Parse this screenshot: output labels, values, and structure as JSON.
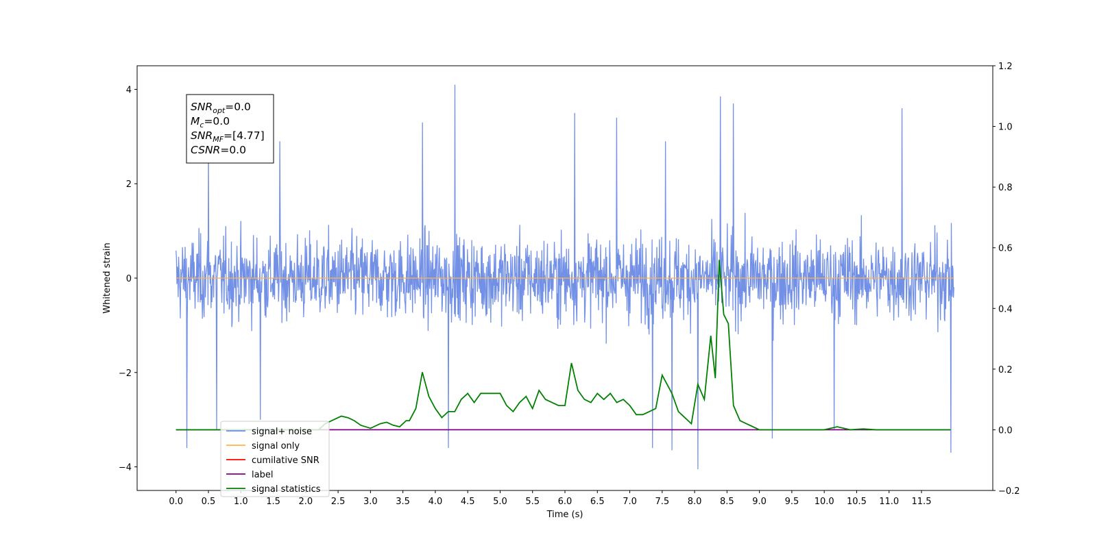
{
  "chart_data": {
    "type": "line",
    "xlabel": "Time (s)",
    "ylabel": "Whitened strain",
    "xlim": [
      -0.6,
      12.6
    ],
    "ylim": [
      -4.5,
      4.5
    ],
    "y2lim": [
      -0.2,
      1.2
    ],
    "x_ticks": [
      0.0,
      0.5,
      1.0,
      1.5,
      2.0,
      2.5,
      3.0,
      3.5,
      4.0,
      4.5,
      5.0,
      5.5,
      6.0,
      6.5,
      7.0,
      7.5,
      8.0,
      8.5,
      9.0,
      9.5,
      10.0,
      10.5,
      11.0,
      11.5
    ],
    "x_tick_labels": [
      "0.0",
      "0.5",
      "1.0",
      "1.5",
      "2.0",
      "2.5",
      "3.0",
      "3.5",
      "4.0",
      "4.5",
      "5.0",
      "5.5",
      "6.0",
      "6.5",
      "7.0",
      "7.5",
      "8.0",
      "8.5",
      "9.0",
      "9.5",
      "10.0",
      "10.5",
      "11.0",
      "11.5"
    ],
    "y_ticks": [
      -4,
      -2,
      0,
      2,
      4
    ],
    "y_tick_labels": [
      "−4",
      "−2",
      "0",
      "2",
      "4"
    ],
    "y2_ticks": [
      -0.2,
      0.0,
      0.2,
      0.4,
      0.6,
      0.8,
      1.0,
      1.2
    ],
    "y2_tick_labels": [
      "−0.2",
      "0.0",
      "0.2",
      "0.4",
      "0.6",
      "0.8",
      "1.0",
      "1.2"
    ],
    "legend_position": "lower-left",
    "grid": false,
    "annotation": {
      "lines": [
        {
          "base": "SNR",
          "sub": "opt",
          "value": "=0.0"
        },
        {
          "base": "M",
          "sub": "c",
          "value": "=0.0"
        },
        {
          "base": "SNR",
          "sub": "MF",
          "value": "=[4.77]"
        },
        {
          "base": "CSNR",
          "sub": "",
          "value": "=0.0"
        }
      ]
    },
    "series": [
      {
        "name": "signal+ noise",
        "axis": "left",
        "color": "#6b8ae6",
        "x_range": [
          0.0,
          12.0
        ],
        "envelope_typical": [
          -2.0,
          2.0
        ],
        "peaks": [
          {
            "x": 0.17,
            "y": -3.6
          },
          {
            "x": 0.5,
            "y": 2.85
          },
          {
            "x": 0.63,
            "y": -3.2
          },
          {
            "x": 1.3,
            "y": -3.0
          },
          {
            "x": 1.6,
            "y": 2.9
          },
          {
            "x": 3.8,
            "y": 3.3
          },
          {
            "x": 4.2,
            "y": -3.6
          },
          {
            "x": 4.3,
            "y": 4.1
          },
          {
            "x": 6.15,
            "y": 3.5
          },
          {
            "x": 6.8,
            "y": 3.4
          },
          {
            "x": 7.35,
            "y": -3.6
          },
          {
            "x": 7.55,
            "y": 2.9
          },
          {
            "x": 7.65,
            "y": -3.65
          },
          {
            "x": 8.05,
            "y": -4.05
          },
          {
            "x": 8.4,
            "y": 3.85
          },
          {
            "x": 8.6,
            "y": 3.7
          },
          {
            "x": 9.2,
            "y": -3.4
          },
          {
            "x": 10.15,
            "y": -3.2
          },
          {
            "x": 11.2,
            "y": 3.6
          },
          {
            "x": 11.95,
            "y": -3.7
          }
        ]
      },
      {
        "name": "signal only",
        "axis": "left",
        "color": "#ffb347",
        "x": [
          0.0,
          12.0
        ],
        "y": [
          0.0,
          0.0
        ]
      },
      {
        "name": "cumilative SNR",
        "axis": "right",
        "color": "#ff0000",
        "x": [],
        "y": []
      },
      {
        "name": "label",
        "axis": "right",
        "color": "#800080",
        "x": [
          0.0,
          11.95
        ],
        "y": [
          0.0,
          0.0
        ]
      },
      {
        "name": "signal statistics",
        "axis": "right",
        "color": "#008000",
        "x": [
          0.0,
          2.2,
          2.3,
          2.45,
          2.55,
          2.65,
          2.75,
          2.85,
          3.0,
          3.15,
          3.25,
          3.35,
          3.45,
          3.55,
          3.6,
          3.7,
          3.8,
          3.9,
          4.0,
          4.1,
          4.2,
          4.3,
          4.4,
          4.5,
          4.6,
          4.7,
          4.8,
          4.9,
          5.0,
          5.1,
          5.2,
          5.3,
          5.4,
          5.5,
          5.6,
          5.7,
          5.8,
          5.9,
          6.0,
          6.1,
          6.2,
          6.3,
          6.4,
          6.5,
          6.6,
          6.7,
          6.8,
          6.9,
          7.0,
          7.1,
          7.2,
          7.3,
          7.4,
          7.5,
          7.6,
          7.65,
          7.75,
          7.85,
          7.95,
          8.05,
          8.15,
          8.25,
          8.32,
          8.38,
          8.45,
          8.52,
          8.6,
          8.7,
          8.8,
          8.9,
          9.0,
          9.2,
          10.0,
          10.2,
          10.4,
          10.6,
          10.8,
          11.95
        ],
        "y": [
          0.0,
          0.0,
          0.02,
          0.035,
          0.045,
          0.04,
          0.03,
          0.015,
          0.005,
          0.02,
          0.025,
          0.015,
          0.01,
          0.03,
          0.03,
          0.07,
          0.19,
          0.11,
          0.07,
          0.04,
          0.06,
          0.06,
          0.1,
          0.12,
          0.09,
          0.12,
          0.12,
          0.12,
          0.12,
          0.08,
          0.06,
          0.09,
          0.11,
          0.07,
          0.13,
          0.1,
          0.09,
          0.08,
          0.08,
          0.22,
          0.13,
          0.1,
          0.09,
          0.12,
          0.1,
          0.12,
          0.09,
          0.1,
          0.08,
          0.05,
          0.05,
          0.06,
          0.07,
          0.18,
          0.14,
          0.12,
          0.06,
          0.04,
          0.02,
          0.15,
          0.1,
          0.31,
          0.17,
          0.56,
          0.38,
          0.35,
          0.08,
          0.03,
          0.02,
          0.01,
          0.0,
          0.0,
          0.0,
          0.01,
          0.0,
          0.003,
          0.0,
          0.0
        ]
      }
    ]
  }
}
